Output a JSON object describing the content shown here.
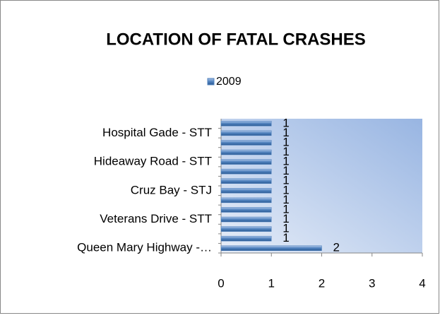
{
  "chart_data": {
    "type": "bar",
    "orientation": "horizontal",
    "title": "LOCATION OF FATAL CRASHES",
    "categories": [
      "Queen Mary Highway -…",
      null,
      null,
      "Veterans Drive - STT",
      null,
      null,
      "Cruz Bay - STJ",
      null,
      null,
      "Hideaway Road - STT",
      null,
      null,
      "Hospital Gade - STT",
      null
    ],
    "series": [
      {
        "name": "2009",
        "color": "#4f81bd",
        "values": [
          2,
          1,
          1,
          1,
          1,
          1,
          1,
          1,
          1,
          1,
          1,
          1,
          1,
          1
        ]
      }
    ],
    "xlim": [
      0,
      4
    ],
    "xticks": [
      0,
      1,
      2,
      3,
      4
    ],
    "legend": "top"
  }
}
